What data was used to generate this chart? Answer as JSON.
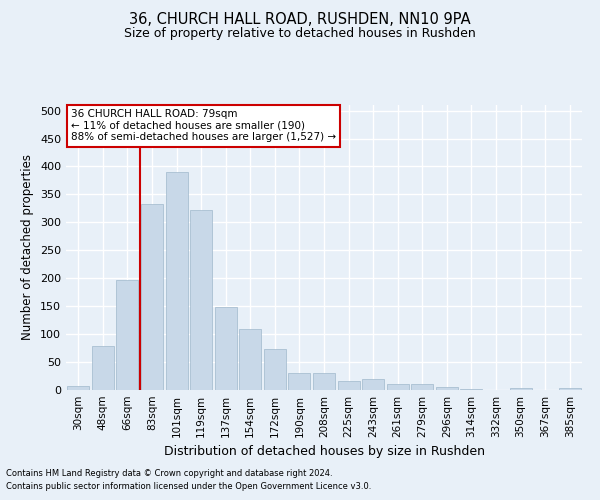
{
  "title1": "36, CHURCH HALL ROAD, RUSHDEN, NN10 9PA",
  "title2": "Size of property relative to detached houses in Rushden",
  "xlabel": "Distribution of detached houses by size in Rushden",
  "ylabel": "Number of detached properties",
  "footer1": "Contains HM Land Registry data © Crown copyright and database right 2024.",
  "footer2": "Contains public sector information licensed under the Open Government Licence v3.0.",
  "bin_labels": [
    "30sqm",
    "48sqm",
    "66sqm",
    "83sqm",
    "101sqm",
    "119sqm",
    "137sqm",
    "154sqm",
    "172sqm",
    "190sqm",
    "208sqm",
    "225sqm",
    "243sqm",
    "261sqm",
    "279sqm",
    "296sqm",
    "314sqm",
    "332sqm",
    "350sqm",
    "367sqm",
    "385sqm"
  ],
  "bar_values": [
    8,
    78,
    197,
    332,
    390,
    322,
    149,
    110,
    73,
    30,
    30,
    17,
    19,
    11,
    11,
    5,
    2,
    0,
    4,
    0,
    3
  ],
  "bar_color": "#c8d8e8",
  "bar_edge_color": "#a0b8cc",
  "vline_color": "#cc0000",
  "annotation_text": "36 CHURCH HALL ROAD: 79sqm\n← 11% of detached houses are smaller (190)\n88% of semi-detached houses are larger (1,527) →",
  "annotation_box_color": "#ffffff",
  "annotation_box_edge": "#cc0000",
  "ylim": [
    0,
    510
  ],
  "yticks": [
    0,
    50,
    100,
    150,
    200,
    250,
    300,
    350,
    400,
    450,
    500
  ],
  "bg_color": "#e8f0f8",
  "plot_bg_color": "#e8f0f8",
  "grid_color": "#ffffff"
}
